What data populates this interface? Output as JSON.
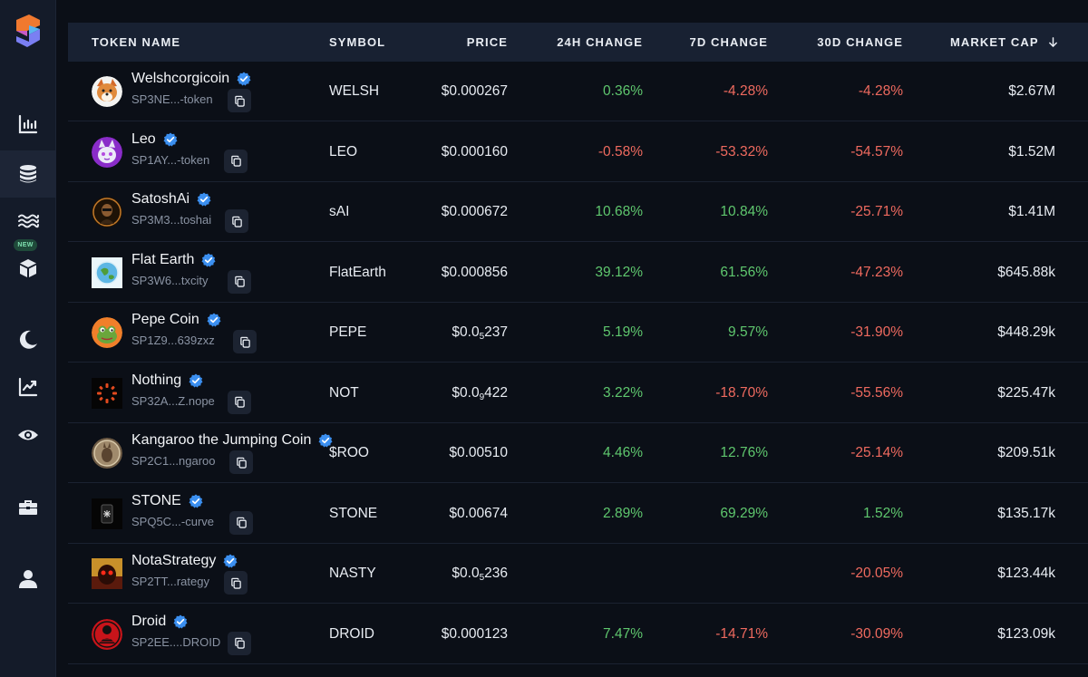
{
  "colors": {
    "positive": "#5fc76e",
    "negative": "#ef6a5f",
    "verified": "#3b8ff0",
    "background": "#0b0f17"
  },
  "sidebar": {
    "logo": "app-logo",
    "items": [
      {
        "icon": "bar-chart-icon"
      },
      {
        "icon": "coins-stack-icon"
      },
      {
        "icon": "waves-icon"
      },
      {
        "icon": "cube-icon",
        "badge": "NEW"
      },
      {
        "icon": "moon-icon"
      },
      {
        "icon": "trending-chart-icon"
      },
      {
        "icon": "eye-icon"
      },
      {
        "icon": "briefcase-icon"
      },
      {
        "icon": "user-icon"
      }
    ]
  },
  "table": {
    "headers": {
      "name": "TOKEN NAME",
      "symbol": "SYMBOL",
      "price": "PRICE",
      "change_24h": "24H CHANGE",
      "change_7d": "7D CHANGE",
      "change_30d": "30D CHANGE",
      "market_cap": "MARKET CAP",
      "sort_icon": "arrow-down-icon"
    },
    "rows": [
      {
        "name": "Welshcorgicoin",
        "address": "SP3NE...-token",
        "symbol": "WELSH",
        "price": "$0.000267",
        "price_sub": "",
        "price_tail": "",
        "change_24h": "0.36%",
        "change_7d": "-4.28%",
        "change_30d": "-4.28%",
        "market_cap": "$2.67M"
      },
      {
        "name": "Leo",
        "address": "SP1AY...-token",
        "symbol": "LEO",
        "price": "$0.000160",
        "price_sub": "",
        "price_tail": "",
        "change_24h": "-0.58%",
        "change_7d": "-53.32%",
        "change_30d": "-54.57%",
        "market_cap": "$1.52M"
      },
      {
        "name": "SatoshAi",
        "address": "SP3M3...toshai",
        "symbol": "sAI",
        "price": "$0.000672",
        "price_sub": "",
        "price_tail": "",
        "change_24h": "10.68%",
        "change_7d": "10.84%",
        "change_30d": "-25.71%",
        "market_cap": "$1.41M"
      },
      {
        "name": "Flat Earth",
        "address": "SP3W6...txcity",
        "symbol": "FlatEarth",
        "price": "$0.000856",
        "price_sub": "",
        "price_tail": "",
        "change_24h": "39.12%",
        "change_7d": "61.56%",
        "change_30d": "-47.23%",
        "market_cap": "$645.88k"
      },
      {
        "name": "Pepe Coin",
        "address": "SP1Z9...639zxz",
        "symbol": "PEPE",
        "price": "$0.0",
        "price_sub": "5",
        "price_tail": "237",
        "change_24h": "5.19%",
        "change_7d": "9.57%",
        "change_30d": "-31.90%",
        "market_cap": "$448.29k"
      },
      {
        "name": "Nothing",
        "address": "SP32A...Z.nope",
        "symbol": "NOT",
        "price": "$0.0",
        "price_sub": "9",
        "price_tail": "422",
        "change_24h": "3.22%",
        "change_7d": "-18.70%",
        "change_30d": "-55.56%",
        "market_cap": "$225.47k"
      },
      {
        "name": "Kangaroo the Jumping Coin",
        "address": "SP2C1...ngaroo",
        "symbol": "$ROO",
        "price": "$0.00510",
        "price_sub": "",
        "price_tail": "",
        "change_24h": "4.46%",
        "change_7d": "12.76%",
        "change_30d": "-25.14%",
        "market_cap": "$209.51k"
      },
      {
        "name": "STONE",
        "address": "SPQ5C...-curve",
        "symbol": "STONE",
        "price": "$0.00674",
        "price_sub": "",
        "price_tail": "",
        "change_24h": "2.89%",
        "change_7d": "69.29%",
        "change_30d": "1.52%",
        "market_cap": "$135.17k"
      },
      {
        "name": "NotaStrategy",
        "address": "SP2TT...rategy",
        "symbol": "NASTY",
        "price": "$0.0",
        "price_sub": "5",
        "price_tail": "236",
        "change_24h": "",
        "change_7d": "",
        "change_30d": "-20.05%",
        "market_cap": "$123.44k"
      },
      {
        "name": "Droid",
        "address": "SP2EE....DROID",
        "symbol": "DROID",
        "price": "$0.000123",
        "price_sub": "",
        "price_tail": "",
        "change_24h": "7.47%",
        "change_7d": "-14.71%",
        "change_30d": "-30.09%",
        "market_cap": "$123.09k"
      }
    ]
  }
}
